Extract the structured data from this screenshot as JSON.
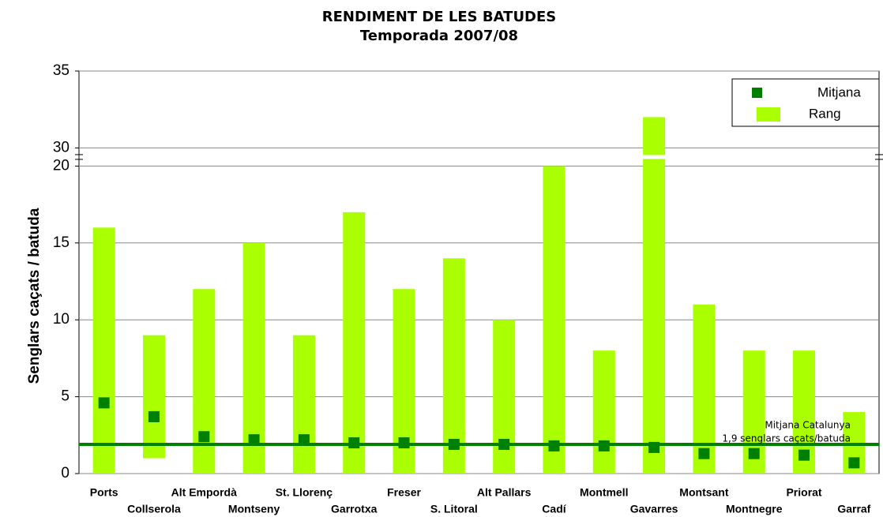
{
  "chart_data": {
    "type": "range-bar",
    "title": "RENDIMENT DE LES BATUDES",
    "subtitle": "Temporada 2007/08",
    "y_label": "Senglars caçats / batuda",
    "categories": [
      "Ports",
      "Collserola",
      "Alt Empordà",
      "Montseny",
      "St. Llorenç",
      "Garrotxa",
      "Freser",
      "S. Litoral",
      "Alt Pallars",
      "Cadí",
      "Montmell",
      "Gavarres",
      "Montsant",
      "Montnegre",
      "Priorat",
      "Garraf"
    ],
    "series": [
      {
        "name": "Mitjana",
        "color": "#008000",
        "values": [
          4.6,
          3.7,
          2.4,
          2.2,
          2.2,
          2.0,
          2.0,
          1.9,
          1.9,
          1.8,
          1.8,
          1.7,
          1.3,
          1.3,
          1.2,
          0.7
        ]
      },
      {
        "name": "Rang",
        "color": "#aaff00",
        "low": [
          0,
          1,
          0,
          0,
          0,
          0,
          0,
          0,
          0,
          0,
          0,
          0,
          0,
          0,
          0,
          0
        ],
        "high": [
          16,
          9,
          12,
          15,
          9,
          17,
          12,
          14,
          10,
          20,
          8,
          32,
          11,
          8,
          8,
          4
        ]
      }
    ],
    "average": 1.9,
    "average_color": "#008000",
    "average_label": [
      "Mitjana Catalunya",
      "1,9 senglars caçats/batuda"
    ],
    "ylim": [
      0,
      35
    ],
    "axis_break": [
      20,
      30
    ],
    "yticks": [
      0,
      5,
      10,
      15,
      20,
      30,
      35
    ],
    "grid": true,
    "legend": "top-right"
  }
}
